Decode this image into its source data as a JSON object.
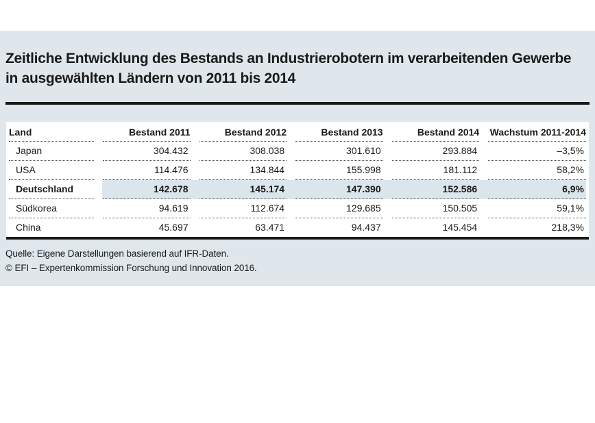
{
  "colors": {
    "panel_bg": "#dfe7ed",
    "highlight_bg": "#dbe5ec",
    "rule": "#1a1a18",
    "text": "#1a1a18"
  },
  "title": {
    "line1": "Zeitliche Entwicklung des Bestands an Industrierobotern im verarbeitenden Gewerbe",
    "line2": "in ausgewählten Ländern von 2011 bis 2014"
  },
  "table": {
    "columns": [
      "Land",
      "Bestand 2011",
      "Bestand 2012",
      "Bestand 2013",
      "Bestand 2014",
      "Wachstum 2011-2014"
    ],
    "rows": [
      {
        "land": "Japan",
        "b2011": "304.432",
        "b2012": "308.038",
        "b2013": "301.610",
        "b2014": "293.884",
        "wachstum": "–3,5%",
        "highlight": false
      },
      {
        "land": "USA",
        "b2011": "114.476",
        "b2012": "134.844",
        "b2013": "155.998",
        "b2014": "181.112",
        "wachstum": "58,2%",
        "highlight": false
      },
      {
        "land": "Deutschland",
        "b2011": "142.678",
        "b2012": "145.174",
        "b2013": "147.390",
        "b2014": "152.586",
        "wachstum": "6,9%",
        "highlight": true
      },
      {
        "land": "Südkorea",
        "b2011": "94.619",
        "b2012": "112.674",
        "b2013": "129.685",
        "b2014": "150.505",
        "wachstum": "59,1%",
        "highlight": false
      },
      {
        "land": "China",
        "b2011": "45.697",
        "b2012": "63.471",
        "b2013": "94.437",
        "b2014": "145.454",
        "wachstum": "218,3%",
        "highlight": false
      }
    ]
  },
  "footer": {
    "source": "Quelle: Eigene Darstellungen basierend auf IFR-Daten.",
    "copyright": "© EFI – Expertenkommission Forschung und Innovation 2016."
  },
  "chart_data": {
    "type": "table",
    "title": "Zeitliche Entwicklung des Bestands an Industrierobotern im verarbeitenden Gewerbe in ausgewählten Ländern von 2011 bis 2014",
    "columns": [
      "Land",
      "Bestand 2011",
      "Bestand 2012",
      "Bestand 2013",
      "Bestand 2014",
      "Wachstum 2011-2014"
    ],
    "years": [
      2011,
      2012,
      2013,
      2014
    ],
    "series": [
      {
        "name": "Japan",
        "bestand": [
          304432,
          308038,
          301610,
          293884
        ],
        "wachstum_2011_2014_pct": -3.5,
        "highlighted": false
      },
      {
        "name": "USA",
        "bestand": [
          114476,
          134844,
          155998,
          181112
        ],
        "wachstum_2011_2014_pct": 58.2,
        "highlighted": false
      },
      {
        "name": "Deutschland",
        "bestand": [
          142678,
          145174,
          147390,
          152586
        ],
        "wachstum_2011_2014_pct": 6.9,
        "highlighted": true
      },
      {
        "name": "Südkorea",
        "bestand": [
          94619,
          112674,
          129685,
          150505
        ],
        "wachstum_2011_2014_pct": 59.1,
        "highlighted": false
      },
      {
        "name": "China",
        "bestand": [
          45697,
          63471,
          94437,
          145454
        ],
        "wachstum_2011_2014_pct": 218.3,
        "highlighted": false
      }
    ],
    "source": "Quelle: Eigene Darstellungen basierend auf IFR-Daten.",
    "copyright": "© EFI – Expertenkommission Forschung und Innovation 2016."
  }
}
